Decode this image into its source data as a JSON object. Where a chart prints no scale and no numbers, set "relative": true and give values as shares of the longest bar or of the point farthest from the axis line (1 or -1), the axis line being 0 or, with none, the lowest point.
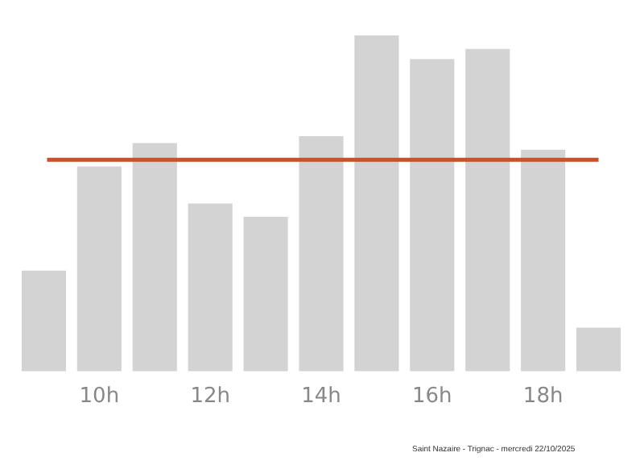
{
  "chart_data": {
    "type": "bar",
    "relative": true,
    "categories": [
      null,
      "10h",
      null,
      "12h",
      null,
      "14h",
      null,
      "16h",
      null,
      "18h",
      null
    ],
    "values": [
      0.3,
      0.61,
      0.68,
      0.5,
      0.46,
      0.7,
      1,
      0.93,
      0.96,
      0.66,
      0.13
    ],
    "color": "#d3d3d3",
    "ref_lines": [
      {
        "axis": "y",
        "value": 0.63,
        "color": "#c8502a",
        "line_style": "solid"
      }
    ],
    "annotations": [
      "Saint Nazaire - Trignac - mercredi 22/10/2025"
    ],
    "grid": false,
    "legend": false
  }
}
